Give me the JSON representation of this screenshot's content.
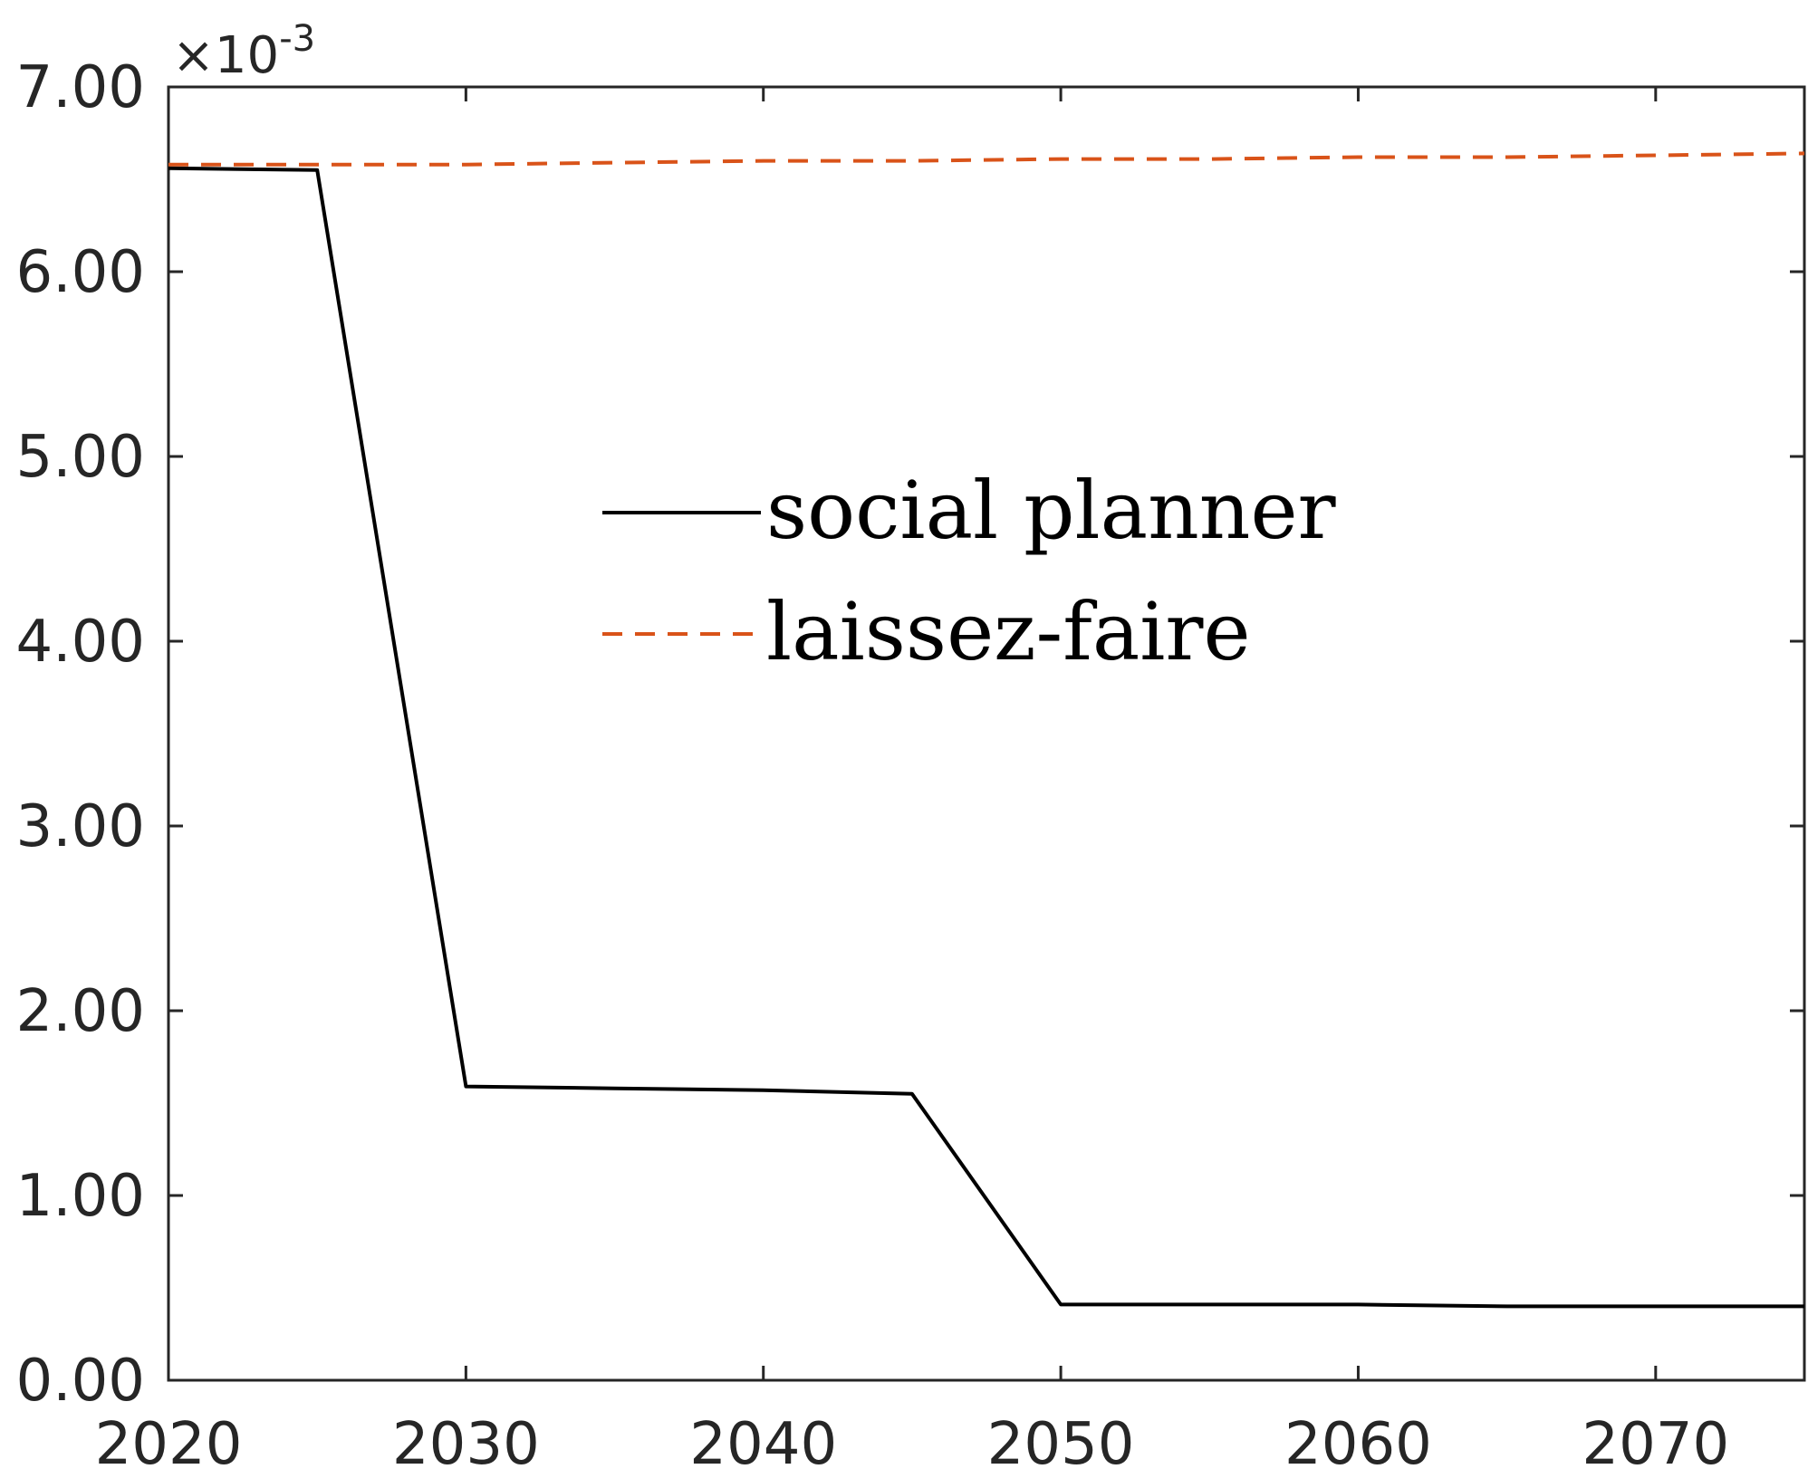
{
  "chart_data": {
    "type": "line",
    "x": [
      2020,
      2025,
      2030,
      2035,
      2040,
      2045,
      2050,
      2055,
      2060,
      2065,
      2070,
      2075
    ],
    "series": [
      {
        "name": "social planner",
        "color": "#000000",
        "style": "solid",
        "values": [
          0.00656,
          0.00655,
          0.00159,
          0.00158,
          0.00157,
          0.00155,
          0.00041,
          0.00041,
          0.00041,
          0.0004,
          0.0004,
          0.0004
        ]
      },
      {
        "name": "laissez-faire",
        "color": "#D95319",
        "style": "dashed",
        "values": [
          0.00658,
          0.00658,
          0.00658,
          0.00659,
          0.0066,
          0.0066,
          0.00661,
          0.00661,
          0.00662,
          0.00662,
          0.00663,
          0.00664
        ]
      }
    ],
    "xlim": [
      2020,
      2075
    ],
    "ylim": [
      0,
      0.007
    ],
    "x_ticks": [
      "2020",
      "2030",
      "2040",
      "2050",
      "2060",
      "2070"
    ],
    "x_tick_values": [
      2020,
      2030,
      2040,
      2050,
      2060,
      2070
    ],
    "y_ticks": [
      "0.00",
      "1.00",
      "2.00",
      "3.00",
      "4.00",
      "5.00",
      "6.00",
      "7.00"
    ],
    "y_tick_values": [
      0,
      0.001,
      0.002,
      0.003,
      0.004,
      0.005,
      0.006,
      0.007
    ],
    "y_exponent": {
      "base": "×10",
      "power": "-3"
    },
    "title": "",
    "xlabel": "",
    "ylabel": "",
    "grid": false,
    "legend_position": "center"
  }
}
